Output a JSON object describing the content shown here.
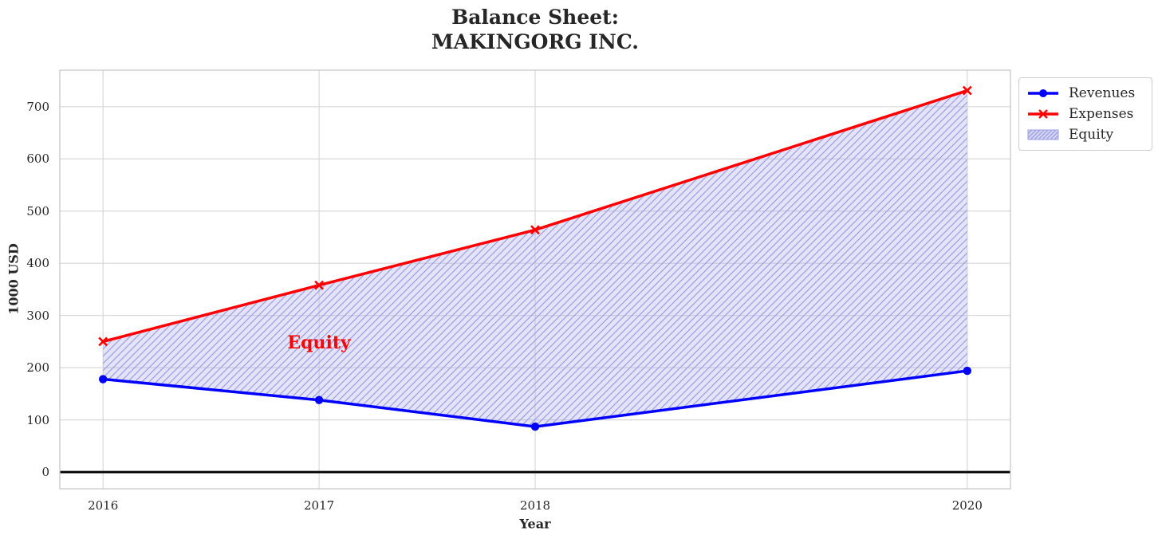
{
  "title": {
    "line1": "Balance Sheet:",
    "line2": "MAKINGORG INC."
  },
  "chart_data": {
    "type": "line",
    "title": "Balance Sheet: MAKINGORG INC.",
    "x": [
      2016,
      2017,
      2018,
      2020
    ],
    "x_tick_labels": [
      "2016",
      "2017",
      "2018",
      "2020"
    ],
    "series": [
      {
        "name": "Revenues",
        "color": "#0000ff",
        "marker": "circle",
        "line_width": 3.5,
        "values": [
          178,
          138,
          87,
          194
        ]
      },
      {
        "name": "Expenses",
        "color": "#ff0000",
        "marker": "x",
        "line_width": 3.5,
        "values": [
          250,
          358,
          464,
          731
        ]
      }
    ],
    "fill_between": {
      "name": "Equity",
      "between": [
        "Revenues",
        "Expenses"
      ],
      "face_color": "#aaaaeb",
      "face_opacity": 0.32,
      "hatch": "/",
      "hatch_color": "#9d9de4"
    },
    "annotation": {
      "text": "Equity",
      "x": 2017,
      "y": 247,
      "color": "#ff0000"
    },
    "xlabel": "Year",
    "ylabel": "1000 USD",
    "y_ticks": [
      0,
      100,
      200,
      300,
      400,
      500,
      600,
      700
    ],
    "xlim": [
      2015.8,
      2020.2
    ],
    "ylim": [
      -32,
      770
    ],
    "grid": true,
    "grid_color": "#d8d8d8",
    "spine_color": "#c8c8c8",
    "zero_line_color": "#000000",
    "legend_position": "upper-right-outside",
    "legend_items": [
      "Revenues",
      "Expenses",
      "Equity"
    ]
  }
}
